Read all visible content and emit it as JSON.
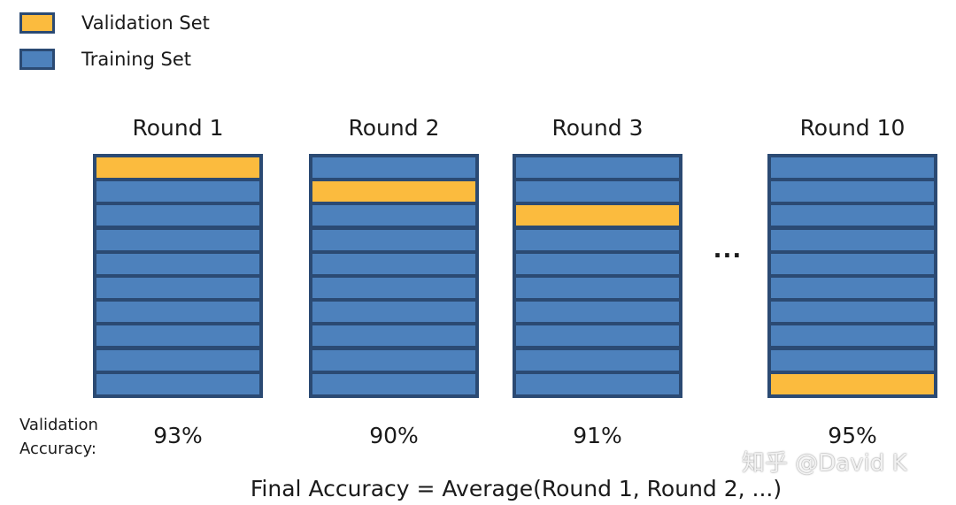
{
  "legend": {
    "items": [
      {
        "label": "Validation Set",
        "color": "#fbbb3e"
      },
      {
        "label": "Training Set",
        "color": "#4d81bc"
      }
    ]
  },
  "colors": {
    "validation": "#fbbb3e",
    "training": "#4d81bc",
    "border": "#2b4a73"
  },
  "folds_per_round": 10,
  "rounds": [
    {
      "title": "Round 1",
      "validation_fold": 1,
      "accuracy": "93%"
    },
    {
      "title": "Round 2",
      "validation_fold": 2,
      "accuracy": "90%"
    },
    {
      "title": "Round 3",
      "validation_fold": 3,
      "accuracy": "91%"
    },
    {
      "title": "Round 10",
      "validation_fold": 10,
      "accuracy": "95%"
    }
  ],
  "ellipsis": "...",
  "accuracy_label": "Validation\nAccuracy:",
  "formula": "Final Accuracy  =  Average(Round 1, Round 2, ...)",
  "watermark": "知乎 @David K"
}
